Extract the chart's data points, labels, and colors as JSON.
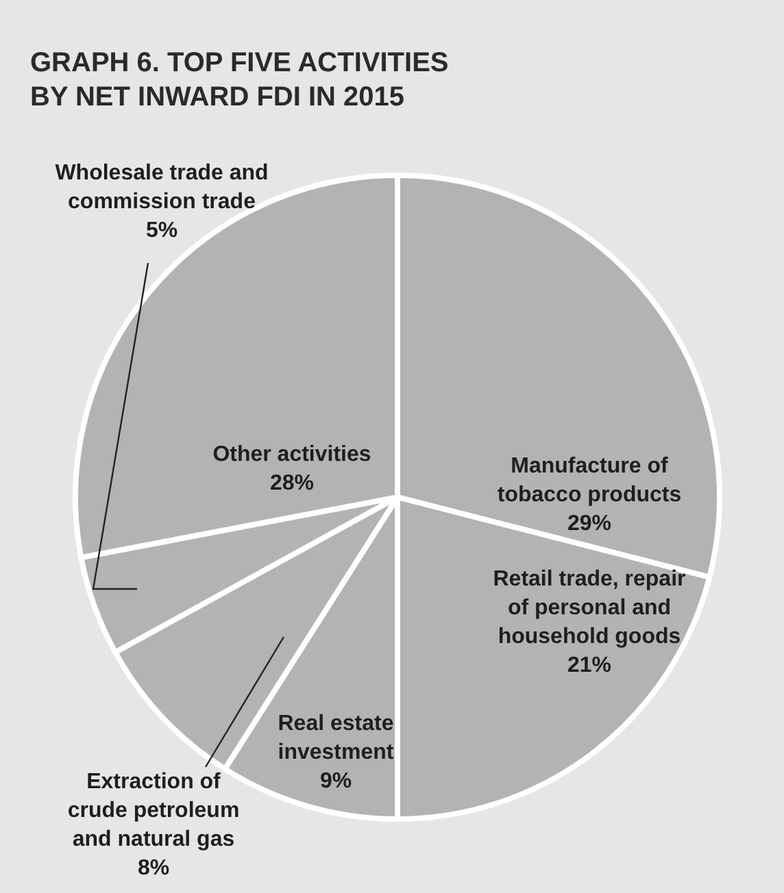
{
  "chart_data": {
    "type": "pie",
    "title": "GRAPH 6. TOP FIVE ACTIVITIES BY NET INWARD FDI IN 2015",
    "categories": [
      "Manufacture of tobacco products",
      "Retail trade, repair of personal and household goods",
      "Real estate investment",
      "Extraction of crude petroleum and natural gas",
      "Wholesale trade and commission trade",
      "Other activities"
    ],
    "values": [
      29,
      21,
      9,
      8,
      5,
      28
    ],
    "colors": [
      "#b3b3b3",
      "#b3b3b3",
      "#b3b3b3",
      "#b3b3b3",
      "#b3b3b3",
      "#b3b3b3"
    ],
    "value_labels": [
      "29%",
      "21%",
      "9%",
      "8%",
      "5%",
      "28%"
    ]
  }
}
